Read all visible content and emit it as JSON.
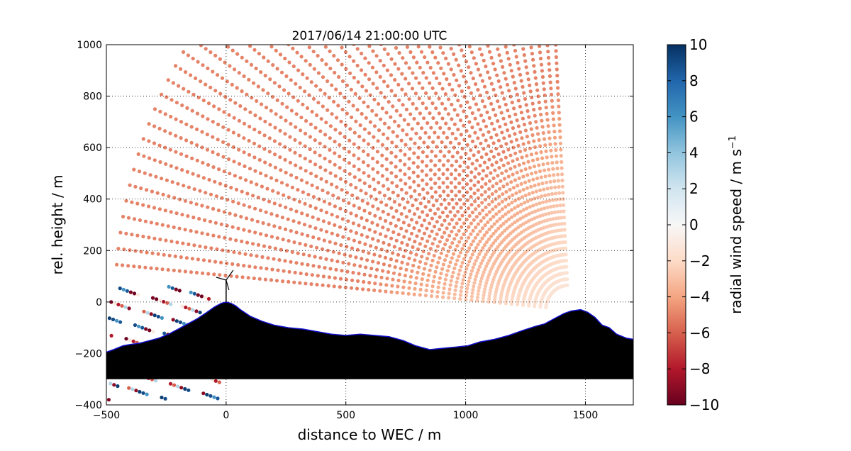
{
  "chart_data": {
    "type": "scatter",
    "title": "2017/06/14 21:00:00 UTC",
    "xlabel": "distance to WEC / m",
    "ylabel": "rel. height / m",
    "xlim": [
      -500,
      1700
    ],
    "ylim": [
      -400,
      1000
    ],
    "xticks": [
      -500,
      0,
      500,
      1000,
      1500
    ],
    "yticks": [
      -400,
      -200,
      0,
      200,
      400,
      600,
      800,
      1000
    ],
    "xtick_labels": [
      "−500",
      "0",
      "500",
      "1000",
      "1500"
    ],
    "ytick_labels": [
      "−400",
      "−200",
      "0",
      "200",
      "400",
      "600",
      "800",
      "1000"
    ],
    "grid": true,
    "colorbar": {
      "label": "radial wind speed / m s",
      "label_superscript": "−1",
      "range": [
        -10,
        10
      ],
      "ticks": [
        10,
        8,
        6,
        4,
        2,
        0,
        -2,
        -4,
        -6,
        -8,
        -10
      ],
      "tick_labels": [
        "10",
        "8",
        "6",
        "4",
        "2",
        "0",
        "−2",
        "−4",
        "−6",
        "−8",
        "−10"
      ],
      "colormap": "RdBu"
    },
    "scan": {
      "origin_distance_m": 1430,
      "origin_height_m": -30,
      "max_range_m": 1900,
      "typical_speed_range": [
        -5,
        0
      ]
    },
    "terrain_profile": {
      "x": [
        -500,
        -470,
        -430,
        -400,
        -360,
        -320,
        -280,
        -240,
        -200,
        -160,
        -120,
        -80,
        -50,
        -20,
        0,
        20,
        40,
        60,
        100,
        150,
        200,
        260,
        320,
        380,
        440,
        500,
        560,
        620,
        680,
        740,
        790,
        850,
        900,
        960,
        1010,
        1060,
        1120,
        1180,
        1240,
        1290,
        1330,
        1370,
        1410,
        1440,
        1480,
        1510,
        1540,
        1570,
        1600,
        1630,
        1670,
        1700
      ],
      "y": [
        -195,
        -185,
        -170,
        -165,
        -160,
        -150,
        -140,
        -125,
        -105,
        -85,
        -65,
        -40,
        -20,
        -5,
        0,
        -5,
        -15,
        -30,
        -55,
        -75,
        -90,
        -100,
        -105,
        -115,
        -125,
        -130,
        -125,
        -130,
        -135,
        -150,
        -170,
        -185,
        -180,
        -175,
        -170,
        -155,
        -145,
        -130,
        -110,
        -95,
        -85,
        -65,
        -45,
        -35,
        -30,
        -40,
        -60,
        -90,
        -100,
        -125,
        -140,
        -145
      ],
      "floor": -300,
      "edge_color": "#1010d0"
    },
    "wec_marker": {
      "x": 0,
      "y": 0,
      "hub_height_m": 85
    }
  }
}
